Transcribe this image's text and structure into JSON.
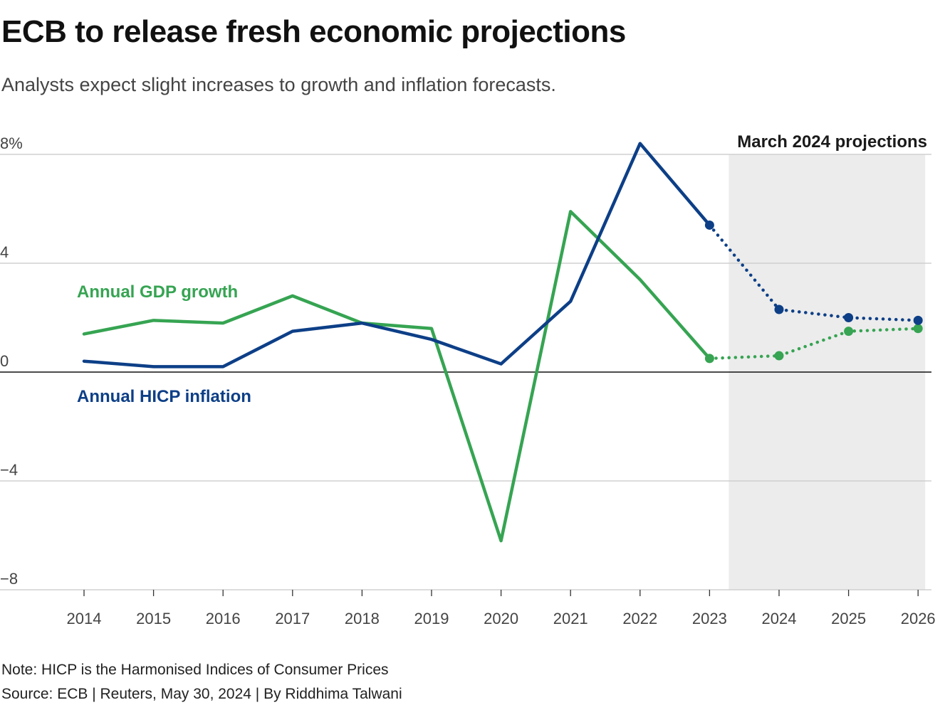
{
  "title": "ECB to release fresh economic projections",
  "subtitle": "Analysts expect slight increases to growth and inflation forecasts.",
  "note": "Note: HICP is the Harmonised Indices of Consumer Prices",
  "source": "Source: ECB | Reuters, May 30, 2024 | By Riddhima Talwani",
  "colors": {
    "gdp": "#36a452",
    "hicp": "#0d3f87",
    "projection_shade": "#ececec",
    "grid": "#c8c8c8",
    "zero_line": "#111111"
  },
  "chart_data": {
    "type": "line",
    "x": [
      "2014",
      "2015",
      "2016",
      "2017",
      "2018",
      "2019",
      "2020",
      "2021",
      "2022",
      "2023",
      "2024",
      "2025",
      "2026"
    ],
    "ylim": [
      -8,
      8
    ],
    "yticks": [
      8,
      4,
      0,
      -4,
      -8
    ],
    "ytick_labels": [
      "8%",
      "4",
      "0",
      "−4",
      "−8"
    ],
    "projection_region": {
      "label": "March 2024 projections",
      "from": "2023",
      "to": "2026"
    },
    "series": [
      {
        "name": "Annual GDP growth",
        "key": "gdp",
        "values": [
          1.4,
          1.9,
          1.8,
          2.8,
          1.8,
          1.6,
          -6.2,
          5.9,
          3.4,
          0.5,
          0.6,
          1.5,
          1.6
        ],
        "actual_until": "2023",
        "projected_from": "2023"
      },
      {
        "name": "Annual HICP inflation",
        "key": "hicp",
        "values": [
          0.4,
          0.2,
          0.2,
          1.5,
          1.8,
          1.2,
          0.3,
          2.6,
          8.4,
          5.4,
          2.3,
          2.0,
          1.9
        ],
        "actual_until": "2023",
        "projected_from": "2023"
      }
    ]
  }
}
